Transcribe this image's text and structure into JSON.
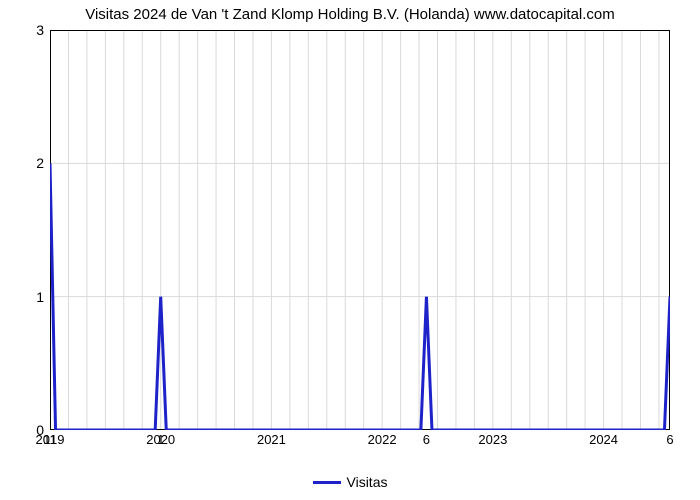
{
  "chart": {
    "type": "line",
    "title": "Visitas 2024 de Van 't Zand Klomp Holding B.V. (Holanda) www.datocapital.com",
    "title_fontsize": 15,
    "background_color": "#ffffff",
    "grid_color": "#d9d9d9",
    "axis_color": "#000000",
    "line_color": "#1e22c9",
    "line_width": 3,
    "xlim": [
      2019,
      2024.6
    ],
    "ylim": [
      0,
      3
    ],
    "xticks": [
      2019,
      2020,
      2021,
      2022,
      2023,
      2024
    ],
    "yticks": [
      0,
      1,
      2,
      3
    ],
    "x_minor_count_per_major": 6,
    "x": [
      2019.0,
      2019.05,
      2019.95,
      2020.0,
      2020.05,
      2022.35,
      2022.4,
      2022.45,
      2024.55,
      2024.6
    ],
    "y": [
      2.0,
      0.0,
      0.0,
      1.0,
      0.0,
      0.0,
      1.0,
      0.0,
      0.0,
      1.0
    ],
    "data_labels": [
      {
        "x": 2019.0,
        "y": 0,
        "text": "11"
      },
      {
        "x": 2020.0,
        "y": 0,
        "text": "1"
      },
      {
        "x": 2022.4,
        "y": 0,
        "text": "6"
      },
      {
        "x": 2024.6,
        "y": 0,
        "text": "6"
      }
    ],
    "legend": {
      "label": "Visitas",
      "position": "bottom",
      "fontsize": 14
    }
  }
}
